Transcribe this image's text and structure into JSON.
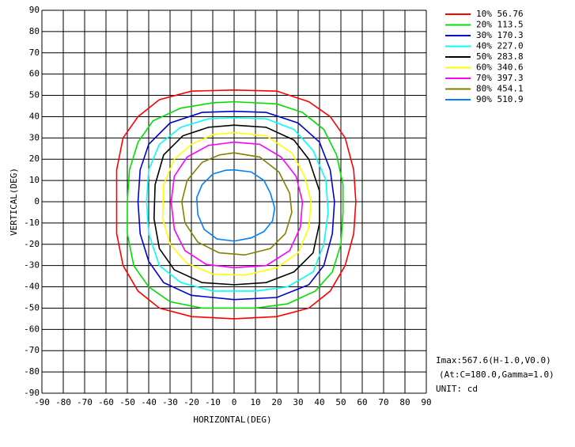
{
  "chart_data": {
    "type": "contour",
    "xlabel": "HORIZONTAL(DEG)",
    "ylabel": "VERTICAL(DEG)",
    "xlim": [
      -90,
      90
    ],
    "ylim": [
      -90,
      90
    ],
    "xticks": [
      -90,
      -80,
      -70,
      -60,
      -50,
      -40,
      -30,
      -20,
      -10,
      0,
      10,
      20,
      30,
      40,
      50,
      60,
      70,
      80,
      90
    ],
    "yticks": [
      -90,
      -80,
      -70,
      -60,
      -50,
      -40,
      -30,
      -20,
      -10,
      0,
      10,
      20,
      30,
      40,
      50,
      60,
      70,
      80,
      90
    ],
    "grid": true,
    "legend": "right",
    "annotations": [
      "Imax:567.6(H-1.0,V0.0)",
      "(At:C=180.0,Gamma=1.0)",
      "UNIT: cd"
    ],
    "series": [
      {
        "name": "10% 56.76",
        "color": "#ff0000",
        "x": [
          0,
          20,
          35,
          45,
          52,
          56,
          57,
          56,
          52,
          45,
          35,
          20,
          0,
          -20,
          -35,
          -45,
          -52,
          -55,
          -55,
          -55,
          -52,
          -45,
          -35,
          -20,
          0
        ],
        "y": [
          52.5,
          52,
          47,
          40,
          30,
          15,
          0,
          -15,
          -30,
          -42,
          -50,
          -54,
          -55,
          -54,
          -50,
          -42,
          -30,
          -15,
          0,
          15,
          30,
          40,
          48,
          52,
          52.5
        ]
      },
      {
        "name": "20% 113.5",
        "color": "#00e000",
        "x": [
          0,
          20,
          32,
          42,
          48,
          51,
          51,
          50,
          46,
          38,
          25,
          10,
          0,
          -15,
          -30,
          -40,
          -47,
          -50,
          -50,
          -49,
          -45,
          -38,
          -25,
          -10,
          0
        ],
        "y": [
          47,
          46,
          42,
          34,
          22,
          8,
          -5,
          -20,
          -33,
          -42,
          -48,
          -50,
          -50,
          -50,
          -47,
          -40,
          -30,
          -15,
          0,
          15,
          28,
          38,
          44,
          46.5,
          47
        ]
      },
      {
        "name": "30% 170.3",
        "color": "#0000d0",
        "x": [
          0,
          15,
          30,
          40,
          45,
          47,
          46,
          42,
          35,
          20,
          0,
          -20,
          -33,
          -40,
          -44,
          -45,
          -44,
          -40,
          -30,
          -15,
          0
        ],
        "y": [
          42.5,
          42,
          37,
          28,
          15,
          0,
          -15,
          -30,
          -39,
          -45,
          -46,
          -44,
          -38,
          -28,
          -15,
          0,
          15,
          27,
          37,
          42,
          42.5
        ]
      },
      {
        "name": "40% 227.0",
        "color": "#00ffff",
        "x": [
          0,
          15,
          28,
          37,
          43,
          44,
          42,
          37,
          25,
          10,
          -10,
          -25,
          -35,
          -40,
          -41,
          -40,
          -35,
          -25,
          -12,
          0
        ],
        "y": [
          39.5,
          39,
          34,
          24,
          10,
          -5,
          -20,
          -33,
          -40,
          -42,
          -42,
          -38,
          -30,
          -15,
          0,
          15,
          27,
          35,
          39,
          39.5
        ]
      },
      {
        "name": "50% 283.8",
        "color": "#000000",
        "x": [
          0,
          15,
          28,
          35,
          40,
          40,
          37,
          28,
          15,
          0,
          -15,
          -28,
          -35,
          -37.5,
          -37,
          -33,
          -24,
          -12,
          0
        ],
        "y": [
          36,
          35,
          29,
          20,
          5,
          -10,
          -24,
          -33,
          -38,
          -39,
          -38,
          -32,
          -22,
          -8,
          8,
          22,
          31,
          35,
          36
        ]
      },
      {
        "name": "60% 340.6",
        "color": "#ffff00",
        "x": [
          0,
          15,
          27,
          33,
          36,
          35,
          30,
          20,
          5,
          -10,
          -22,
          -30,
          -33.5,
          -33,
          -28,
          -20,
          -10,
          0
        ],
        "y": [
          32.5,
          31,
          23,
          12,
          0,
          -12,
          -24,
          -31,
          -34.5,
          -34,
          -29,
          -20,
          -8,
          8,
          20,
          27,
          31.5,
          32.5
        ]
      },
      {
        "name": "70% 397.3",
        "color": "#ff00ff",
        "x": [
          0,
          12,
          22,
          29,
          32,
          31,
          26,
          15,
          0,
          -13,
          -23,
          -28,
          -29.5,
          -28,
          -22,
          -12,
          0
        ],
        "y": [
          28,
          27,
          21,
          12,
          0,
          -12,
          -23,
          -30,
          -31,
          -29.5,
          -23,
          -13,
          0,
          12,
          21,
          26.5,
          28
        ]
      },
      {
        "name": "80% 454.1",
        "color": "#808000",
        "x": [
          0,
          12,
          21,
          26,
          27,
          24,
          17,
          5,
          -7,
          -17,
          -23,
          -24.5,
          -22,
          -15,
          -7,
          0
        ],
        "y": [
          23,
          21,
          14,
          4,
          -5,
          -15,
          -22,
          -25,
          -24,
          -19,
          -10,
          0,
          10,
          18.5,
          22,
          23
        ]
      },
      {
        "name": "90% 510.9",
        "color": "#0080ff",
        "x": [
          0,
          8,
          14,
          17,
          19,
          18,
          14,
          8,
          0,
          -8,
          -14,
          -17,
          -17.5,
          -15,
          -10,
          -4,
          0
        ],
        "y": [
          15,
          14,
          10,
          4,
          -3,
          -9,
          -14,
          -17,
          -18.5,
          -17.5,
          -13,
          -6,
          2,
          8,
          13,
          14.8,
          15
        ]
      }
    ]
  }
}
